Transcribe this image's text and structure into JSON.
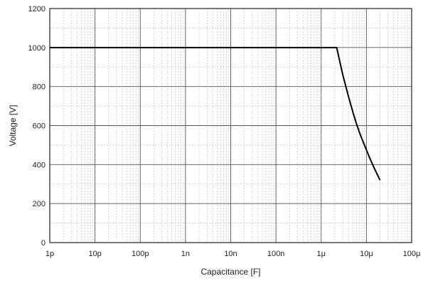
{
  "chart_data": {
    "type": "line",
    "title": "",
    "xlabel": "Capacitance [F]",
    "ylabel": "Voltage [V]",
    "xscale": "log",
    "xlim": [
      1e-12,
      0.0001
    ],
    "ylim": [
      0,
      1200
    ],
    "grid": true,
    "legend": "none",
    "x_tick_values": [
      1e-12,
      1e-11,
      1e-10,
      1e-09,
      1e-08,
      1e-07,
      1e-06,
      1e-05,
      0.0001
    ],
    "x_tick_labels": [
      "1p",
      "10p",
      "100p",
      "1n",
      "10n",
      "100n",
      "1μ",
      "10μ",
      "100μ"
    ],
    "y_tick_values": [
      0,
      200,
      400,
      600,
      800,
      1000,
      1200
    ],
    "y_tick_labels": [
      "0",
      "200",
      "400",
      "600",
      "800",
      "1000",
      "1200"
    ],
    "series": [
      {
        "color": "#000000",
        "points": [
          [
            1e-12,
            1000
          ],
          [
            2.2e-06,
            1000
          ],
          [
            3e-06,
            860
          ],
          [
            4e-06,
            750
          ],
          [
            5e-06,
            670
          ],
          [
            6e-06,
            610
          ],
          [
            7e-06,
            565
          ],
          [
            8e-06,
            530
          ],
          [
            1e-05,
            475
          ],
          [
            1.2e-05,
            430
          ],
          [
            1.5e-05,
            380
          ],
          [
            2e-05,
            320
          ]
        ]
      }
    ]
  },
  "colors": {
    "axis": "#222222",
    "major_grid": "#555555",
    "minor_grid": "#bbbbbb",
    "line": "#000000"
  }
}
